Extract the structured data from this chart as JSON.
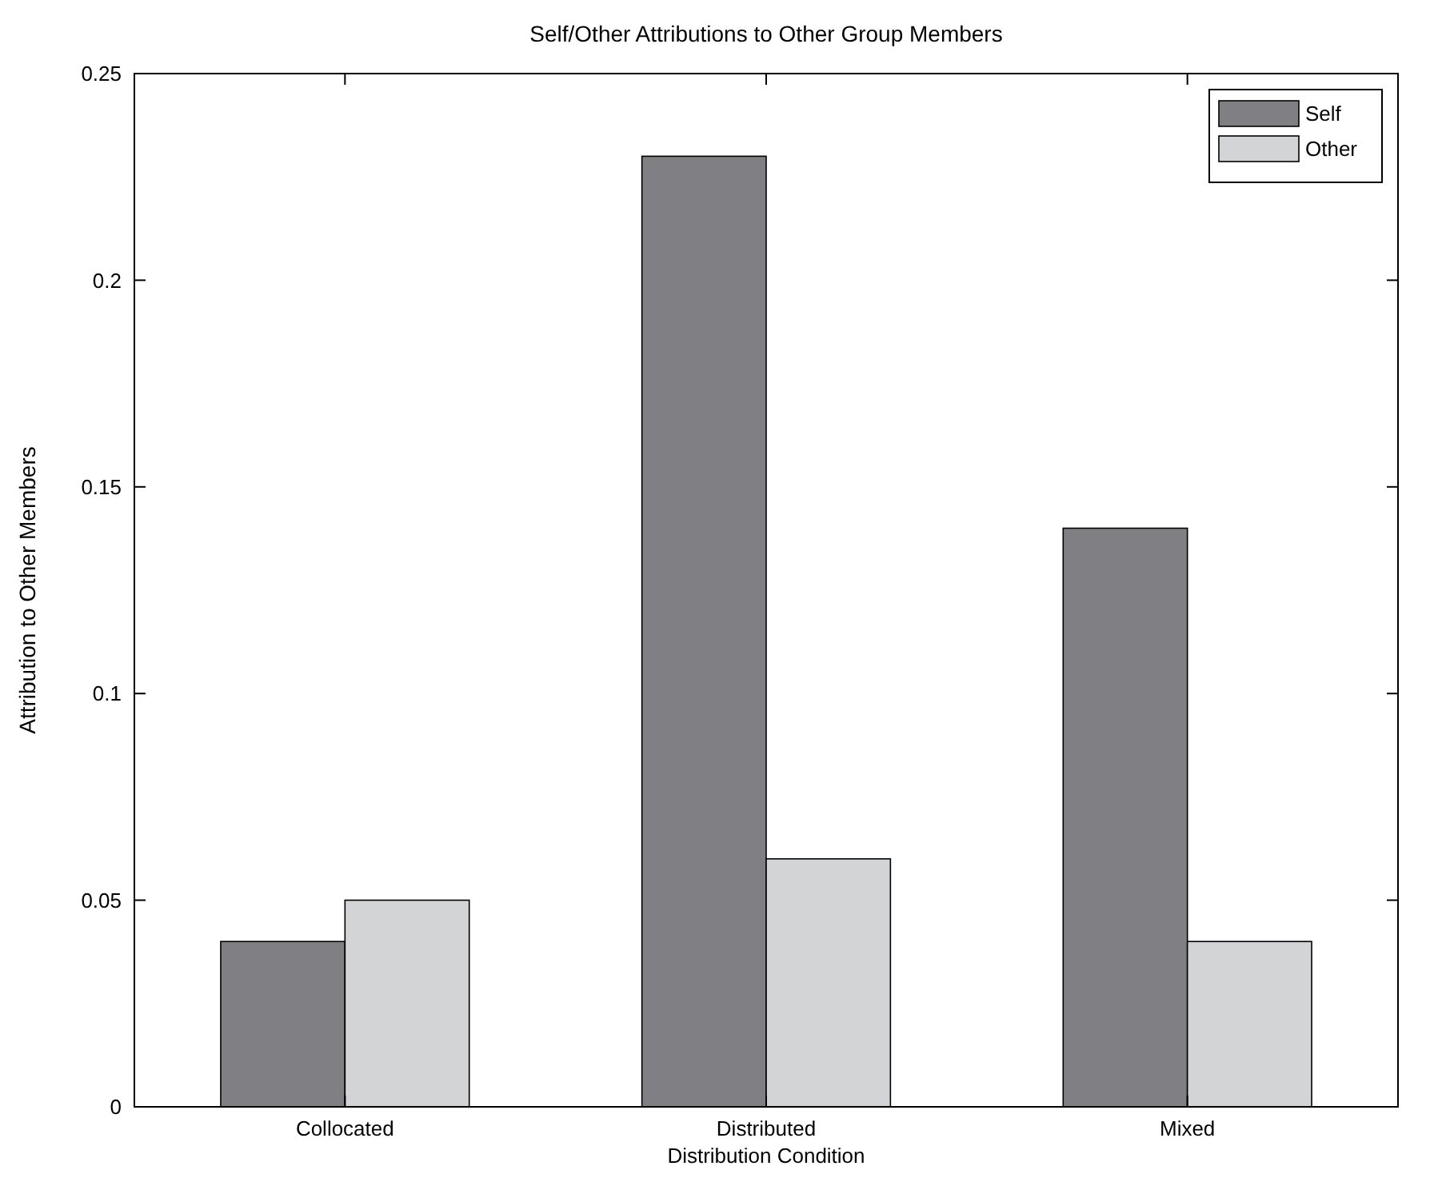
{
  "chart_data": {
    "type": "bar",
    "title": "Self/Other Attributions to Other Group Members",
    "xlabel": "Distribution Condition",
    "ylabel": "Attribution to Other Members",
    "categories": [
      "Collocated",
      "Distributed",
      "Mixed"
    ],
    "series": [
      {
        "name": "Self",
        "color": "#808084",
        "values": [
          0.04,
          0.23,
          0.14
        ]
      },
      {
        "name": "Other",
        "color": "#d3d4d6",
        "values": [
          0.05,
          0.06,
          0.04
        ]
      }
    ],
    "ylim": [
      0,
      0.25
    ],
    "yticks": [
      0,
      0.05,
      0.1,
      0.15,
      0.2,
      0.25
    ],
    "grid": false,
    "legend": "top right"
  }
}
